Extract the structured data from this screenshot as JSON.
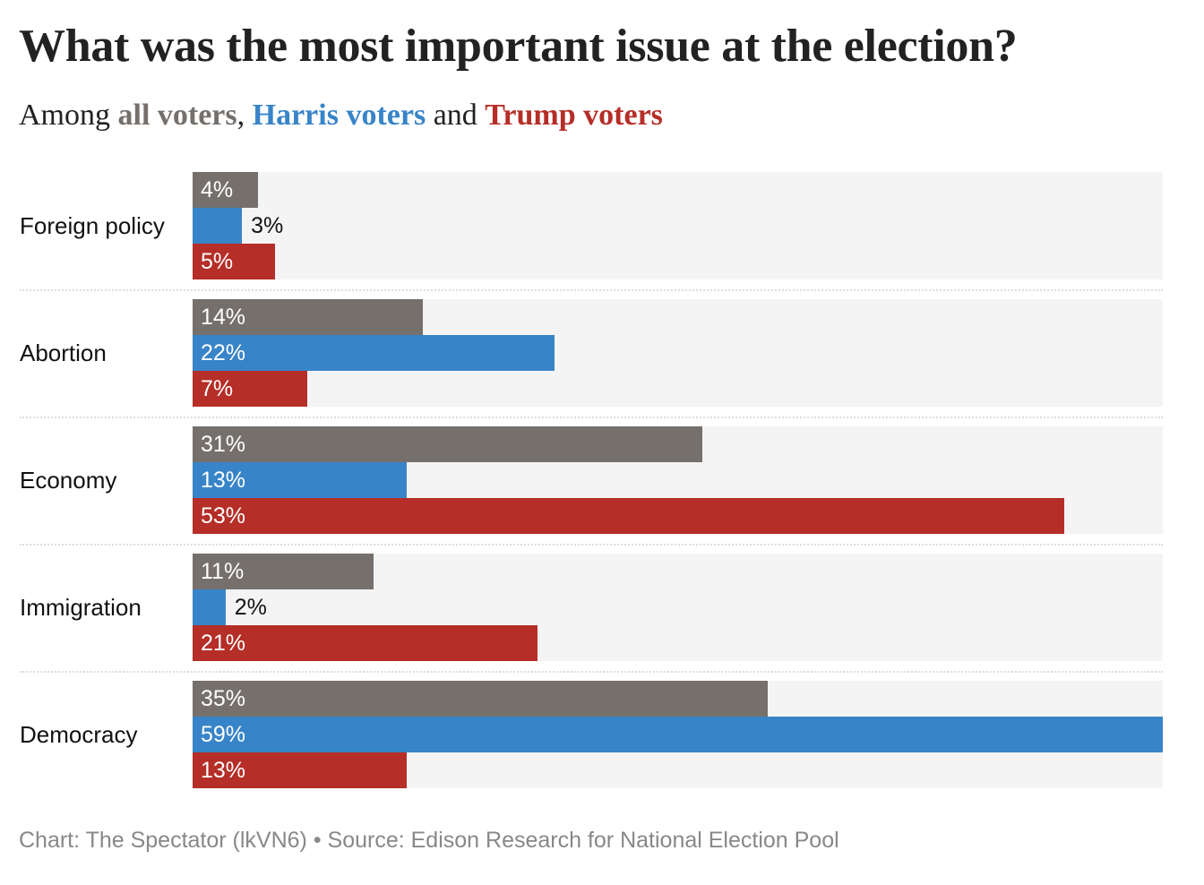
{
  "title": "What was the most important issue at the election?",
  "subtitle": {
    "prefix": "Among ",
    "all": "all voters",
    "sep1": ", ",
    "harris": "Harris voters",
    "sep2": " and ",
    "trump": "Trump voters"
  },
  "footer": "Chart: The Spectator (lkVN6) • Source: Edison Research for National Election Pool",
  "colors": {
    "all": "#75706c",
    "harris": "#3884c8",
    "trump": "#b52e27",
    "background": "#f4f4f4"
  },
  "chart_data": {
    "type": "bar",
    "orientation": "horizontal",
    "title": "What was the most important issue at the election?",
    "categories": [
      "Foreign policy",
      "Abortion",
      "Economy",
      "Immigration",
      "Democracy"
    ],
    "series": [
      {
        "name": "All voters",
        "key": "all",
        "values": [
          4,
          14,
          31,
          11,
          35
        ],
        "labels": [
          "4%",
          "14%",
          "31%",
          "11%",
          "35%"
        ]
      },
      {
        "name": "Harris voters",
        "key": "harris",
        "values": [
          3,
          22,
          13,
          2,
          59
        ],
        "labels": [
          "3%",
          "22%",
          "13%",
          "2%",
          "59%"
        ]
      },
      {
        "name": "Trump voters",
        "key": "trump",
        "values": [
          5,
          7,
          53,
          21,
          13
        ],
        "labels": [
          "5%",
          "7%",
          "53%",
          "21%",
          "13%"
        ]
      }
    ],
    "xlim": [
      0,
      59
    ],
    "unit": "%"
  }
}
